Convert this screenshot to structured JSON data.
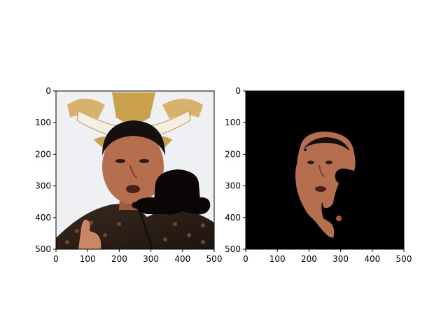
{
  "chart_data": [
    {
      "type": "image",
      "title": "",
      "xlabel": "",
      "ylabel": "",
      "xlim": [
        0,
        500
      ],
      "ylim": [
        500,
        0
      ],
      "xticks": [
        "0",
        "100",
        "200",
        "300",
        "400",
        "500"
      ],
      "yticks": [
        "0",
        "100",
        "200",
        "300",
        "400",
        "500"
      ],
      "grid": false,
      "image": "photo of a man in a batik shirt speaking at a microphone, gold emblem behind; a black bowler-hat shape occludes part of the right side of the frame"
    },
    {
      "type": "image",
      "title": "",
      "xlabel": "",
      "ylabel": "",
      "xlim": [
        0,
        500
      ],
      "ylim": [
        500,
        0
      ],
      "xticks": [
        "0",
        "100",
        "200",
        "300",
        "400",
        "500"
      ],
      "yticks": [
        "0",
        "100",
        "200",
        "300",
        "400",
        "500"
      ],
      "grid": false,
      "image": "segmentation mask: only the face region visible on black background, with black occlusion gaps"
    }
  ],
  "colors": {
    "mask_bg": "#000000",
    "skin": "#b56f4f",
    "hat": "#0b0605"
  }
}
